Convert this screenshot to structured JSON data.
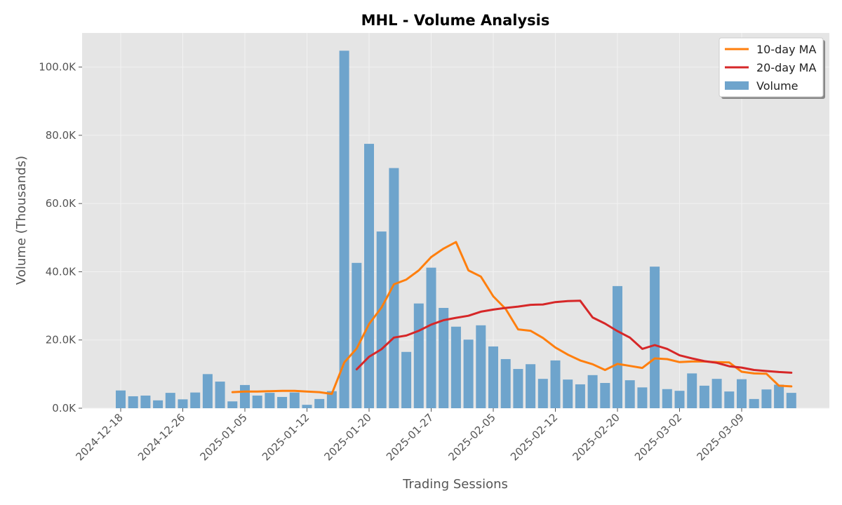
{
  "chart_data": {
    "type": "bar",
    "title": "MHL - Volume Analysis",
    "xlabel": "Trading Sessions",
    "ylabel": "Volume (Thousands)",
    "ylim": [
      0,
      110000
    ],
    "yticks": [
      0,
      20000,
      40000,
      60000,
      80000,
      100000
    ],
    "ytick_labels": [
      "0.0K",
      "20.0K",
      "40.0K",
      "60.0K",
      "80.0K",
      "100.0K"
    ],
    "xtick_labels": [
      "2024-12-18",
      "2024-12-26",
      "2025-01-05",
      "2025-01-12",
      "2025-01-20",
      "2025-01-27",
      "2025-02-05",
      "2025-02-12",
      "2025-02-20",
      "2025-03-02",
      "2025-03-09"
    ],
    "xtick_positions": [
      0,
      5,
      10,
      15,
      20,
      25,
      30,
      35,
      40,
      45,
      50
    ],
    "grid": true,
    "legend_position": "top-right",
    "colors": {
      "volume": "#6ea4cc",
      "ma10": "#ff7f0e",
      "ma20": "#d62728",
      "plot_bg": "#e5e5e5",
      "grid": "#f2f2f2"
    },
    "series": [
      {
        "name": "Volume",
        "kind": "bar",
        "values": [
          5200,
          3500,
          3700,
          2300,
          4500,
          2600,
          4600,
          10000,
          7800,
          2000,
          6800,
          3700,
          4500,
          3300,
          4600,
          1000,
          2700,
          5000,
          104800,
          42600,
          77500,
          51800,
          70400,
          16500,
          30700,
          41200,
          29400,
          23900,
          20100,
          24300,
          18100,
          14400,
          11500,
          12900,
          8600,
          14000,
          8400,
          7000,
          9700,
          7400,
          35800,
          8200,
          6100,
          41500,
          5600,
          5100,
          10200,
          6600,
          8600,
          4900,
          8500,
          2700,
          5500,
          6900,
          4500
        ]
      },
      {
        "name": "10-day MA",
        "kind": "line",
        "values": [
          null,
          null,
          null,
          null,
          null,
          null,
          null,
          null,
          null,
          4700,
          4900,
          4900,
          5000,
          5100,
          5100,
          4900,
          4700,
          4200,
          13400,
          17500,
          24700,
          29500,
          36300,
          37700,
          40400,
          44300,
          46800,
          48700,
          40400,
          38600,
          32800,
          29100,
          23100,
          22700,
          20600,
          17800,
          15700,
          14000,
          12900,
          11200,
          13000,
          12400,
          11800,
          14600,
          14400,
          13500,
          13700,
          13700,
          13500,
          13400,
          10700,
          10200,
          10100,
          6600,
          6400
        ]
      },
      {
        "name": "20-day MA",
        "kind": "line",
        "values": [
          null,
          null,
          null,
          null,
          null,
          null,
          null,
          null,
          null,
          null,
          null,
          null,
          null,
          null,
          null,
          null,
          null,
          null,
          null,
          11400,
          15100,
          17300,
          20700,
          21300,
          22700,
          24500,
          25800,
          26500,
          27100,
          28300,
          28900,
          29400,
          29800,
          30300,
          30400,
          31100,
          31400,
          31500,
          26600,
          24800,
          22600,
          20700,
          17400,
          18500,
          17400,
          15500,
          14600,
          13800,
          13300,
          12300,
          11900,
          11200,
          10900,
          10600,
          10400
        ]
      }
    ]
  }
}
